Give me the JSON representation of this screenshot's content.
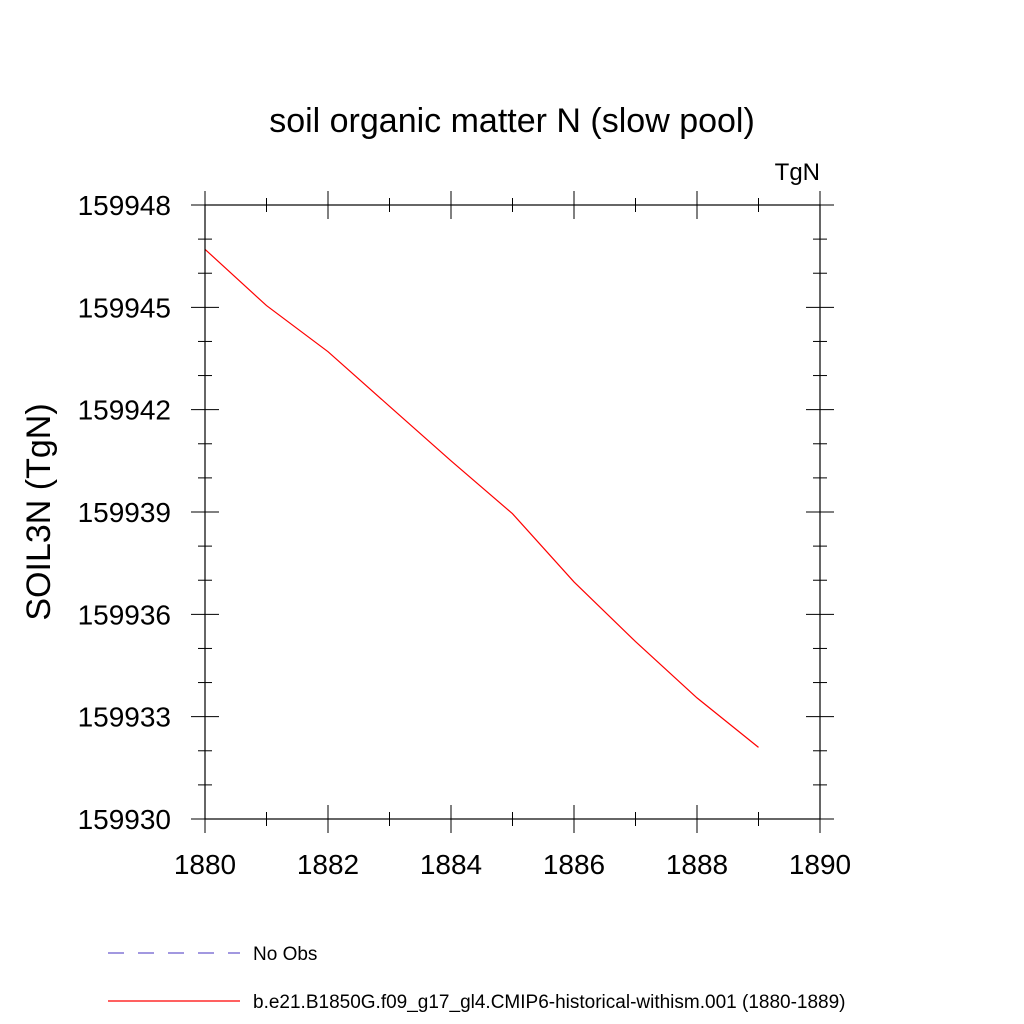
{
  "chart_data": {
    "type": "line",
    "title": "soil organic matter N (slow pool)",
    "units_label": "TgN",
    "ylabel": "SOIL3N  (TgN)",
    "xlabel": "",
    "xlim": [
      1880,
      1890
    ],
    "ylim": [
      159930,
      159948
    ],
    "x_ticks": [
      1880,
      1882,
      1884,
      1886,
      1888,
      1890
    ],
    "y_ticks": [
      159930,
      159933,
      159936,
      159939,
      159942,
      159945,
      159948
    ],
    "x_tick_labels": [
      "1880",
      "1882",
      "1884",
      "1886",
      "1888",
      "1890"
    ],
    "y_tick_labels": [
      "159930",
      "159933",
      "159936",
      "159939",
      "159942",
      "159945",
      "159948"
    ],
    "grid": false,
    "legend_position": "bottom",
    "series": [
      {
        "name": "No Obs",
        "color": "#6a5acd",
        "dash": "dashed",
        "x": [],
        "y": []
      },
      {
        "name": "b.e21.B1850G.f09_g17_gl4.CMIP6-historical-withism.001 (1880-1889)",
        "color": "#ff0000",
        "dash": "solid",
        "x": [
          1880,
          1881,
          1882,
          1883,
          1884,
          1885,
          1886,
          1887,
          1888,
          1889
        ],
        "y": [
          159946.7,
          159945.05,
          159943.7,
          159942.1,
          159940.5,
          159938.95,
          159936.95,
          159935.2,
          159933.55,
          159932.1
        ]
      }
    ]
  }
}
